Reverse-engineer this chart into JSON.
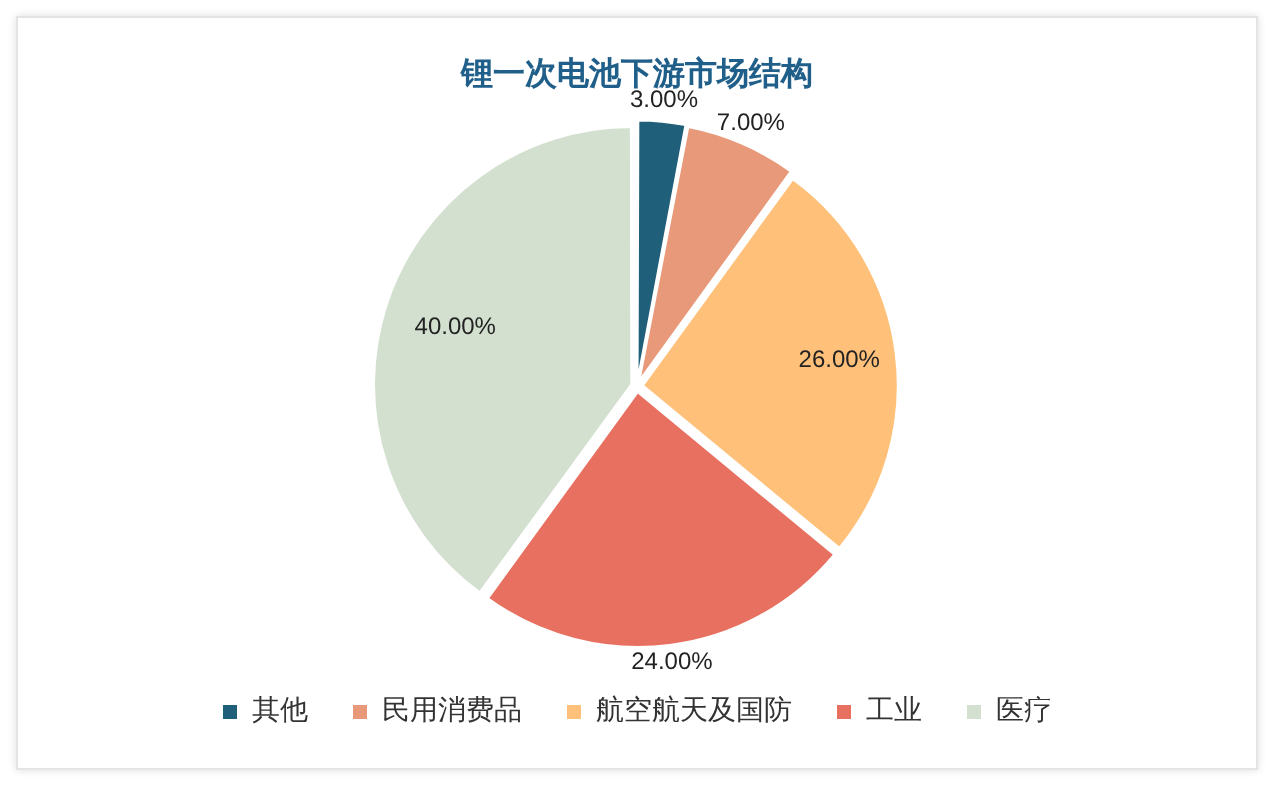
{
  "chart_data": {
    "type": "pie",
    "title": "锂一次电池下游市场结构",
    "categories": [
      "其他",
      "民用消费品",
      "航空航天及国防",
      "工业",
      "医疗"
    ],
    "values": [
      3,
      7,
      26,
      24,
      40
    ],
    "colors": [
      "#1f5f7a",
      "#e8997a",
      "#ffc07a",
      "#e87060",
      "#d3e0cf"
    ],
    "value_labels": [
      "3.00%",
      "7.00%",
      "26.00%",
      "24.00%",
      "40.00%"
    ],
    "legend": "bottom"
  }
}
